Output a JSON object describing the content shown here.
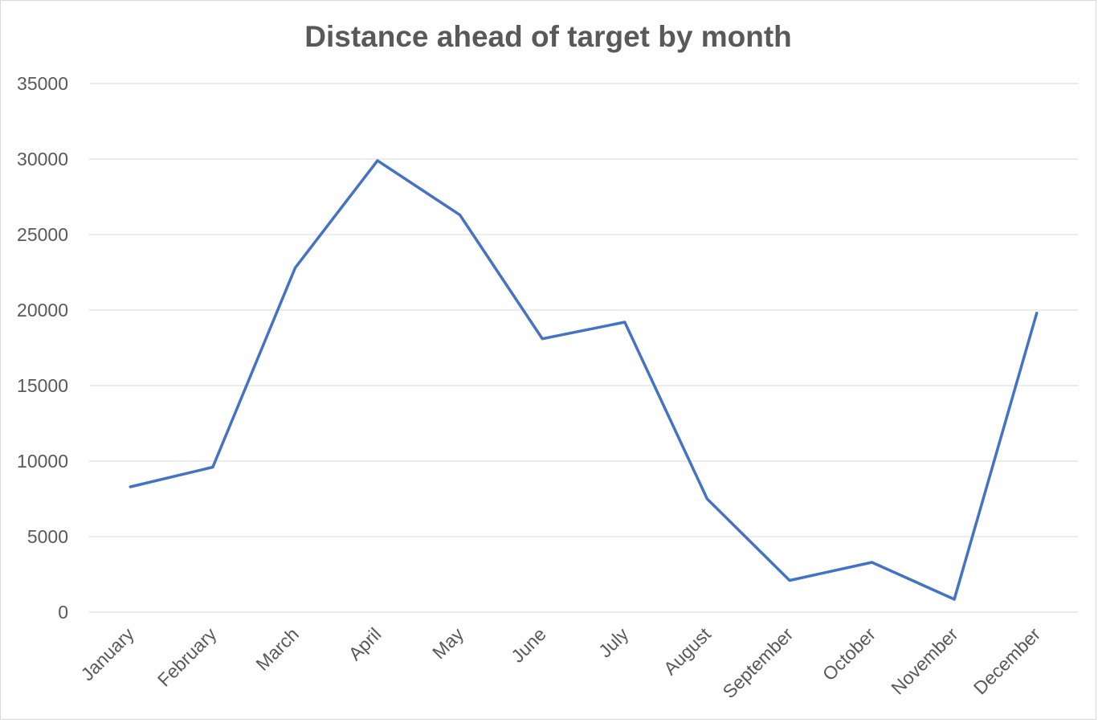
{
  "chart_data": {
    "type": "line",
    "title": "Distance ahead of target by month",
    "xlabel": "",
    "ylabel": "",
    "categories": [
      "January",
      "February",
      "March",
      "April",
      "May",
      "June",
      "July",
      "August",
      "September",
      "October",
      "November",
      "December"
    ],
    "series": [
      {
        "values": [
          8300,
          9600,
          22800,
          29900,
          26300,
          18100,
          19200,
          7500,
          2100,
          3300,
          850,
          19800
        ],
        "color": "#4472c4"
      }
    ],
    "ylim": [
      0,
      35000
    ],
    "yticks": [
      "0",
      "5000",
      "10000",
      "15000",
      "20000",
      "25000",
      "30000",
      "35000"
    ],
    "grid": true,
    "legend": "none"
  }
}
